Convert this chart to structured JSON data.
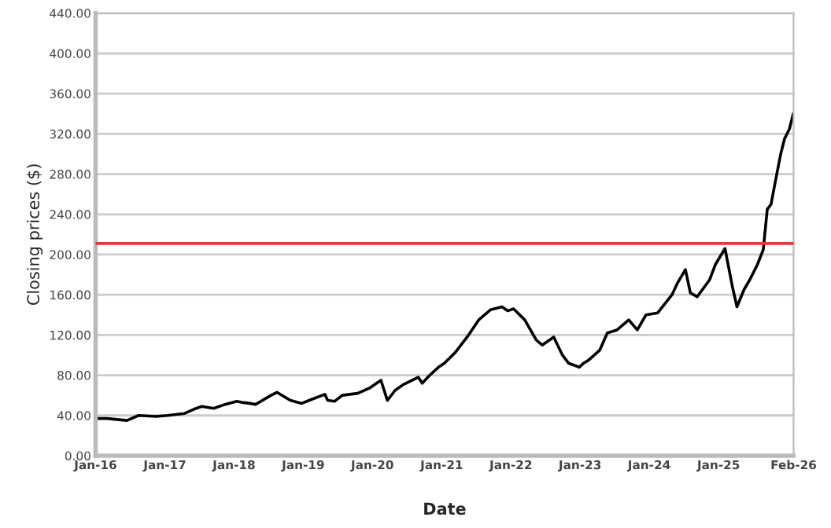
{
  "chart_data": {
    "type": "line",
    "xlabel": "Date",
    "ylabel": "Closing prices ($)",
    "x": [
      "2016-01-04",
      "2016-03-01",
      "2016-06-15",
      "2016-08-15",
      "2016-11-15",
      "2017-01-15",
      "2017-04-15",
      "2017-06-01",
      "2017-07-15",
      "2017-09-15",
      "2017-11-15",
      "2018-01-15",
      "2018-02-10",
      "2018-03-25",
      "2018-04-25",
      "2018-07-15",
      "2018-08-15",
      "2018-10-25",
      "2018-12-24",
      "2019-02-15",
      "2019-04-25",
      "2019-05-10",
      "2019-06-15",
      "2019-07-26",
      "2019-10-15",
      "2019-12-15",
      "2020-02-15",
      "2020-03-20",
      "2020-04-30",
      "2020-06-15",
      "2020-08-30",
      "2020-09-20",
      "2020-10-30",
      "2020-12-15",
      "2021-01-15",
      "2021-03-15",
      "2021-05-15",
      "2021-07-15",
      "2021-09-15",
      "2021-11-15",
      "2021-12-15",
      "2022-01-15",
      "2022-03-15",
      "2022-05-15",
      "2022-06-15",
      "2022-08-15",
      "2022-09-30",
      "2022-11-01",
      "2022-12-28",
      "2023-01-20",
      "2023-02-15",
      "2023-04-15",
      "2023-05-25",
      "2023-07-15",
      "2023-09-15",
      "2023-10-30",
      "2023-12-15",
      "2024-02-15",
      "2024-04-30",
      "2024-05-30",
      "2024-07-10",
      "2024-08-05",
      "2024-09-10",
      "2024-11-15",
      "2024-12-15",
      "2025-02-04",
      "2025-03-15",
      "2025-04-08",
      "2025-05-15",
      "2025-06-15",
      "2025-07-25",
      "2025-08-25",
      "2025-09-15",
      "2025-10-05",
      "2025-10-30",
      "2025-11-25",
      "2025-12-15",
      "2026-01-10",
      "2026-01-30"
    ],
    "series": [
      {
        "color": "#000000",
        "values": [
          37,
          37,
          35,
          40,
          39,
          40,
          42,
          46,
          49,
          47,
          51,
          54,
          53,
          52,
          51,
          60,
          63,
          55,
          52,
          56,
          61,
          55,
          54,
          60,
          62,
          67,
          75,
          55,
          65,
          71,
          78,
          72,
          80,
          88,
          92,
          103,
          118,
          135,
          145,
          148,
          144,
          146,
          135,
          115,
          110,
          118,
          100,
          92,
          88,
          92,
          95,
          105,
          122,
          125,
          135,
          125,
          140,
          142,
          160,
          172,
          185,
          162,
          158,
          175,
          190,
          206,
          168,
          148,
          165,
          175,
          190,
          205,
          245,
          250,
          275,
          300,
          315,
          325,
          340
        ]
      }
    ],
    "xlim": [
      "2016-01-01",
      "2026-02-01"
    ],
    "xticks": [
      {
        "value": "2016-01-01",
        "label": "Jan-16"
      },
      {
        "value": "2017-01-01",
        "label": "Jan-17"
      },
      {
        "value": "2018-01-01",
        "label": "Jan-18"
      },
      {
        "value": "2019-01-01",
        "label": "Jan-19"
      },
      {
        "value": "2020-01-01",
        "label": "Jan-20"
      },
      {
        "value": "2021-01-01",
        "label": "Jan-21"
      },
      {
        "value": "2022-01-01",
        "label": "Jan-22"
      },
      {
        "value": "2023-01-01",
        "label": "Jan-23"
      },
      {
        "value": "2024-01-01",
        "label": "Jan-24"
      },
      {
        "value": "2025-01-01",
        "label": "Jan-25"
      },
      {
        "value": "2026-02-01",
        "label": "Feb-26"
      }
    ],
    "ylim": [
      0,
      440
    ],
    "yticks": [
      {
        "value": 0,
        "label": "0.00"
      },
      {
        "value": 40,
        "label": "40.00"
      },
      {
        "value": 80,
        "label": "80.00"
      },
      {
        "value": 120,
        "label": "120.00"
      },
      {
        "value": 160,
        "label": "160.00"
      },
      {
        "value": 200,
        "label": "200.00"
      },
      {
        "value": 240,
        "label": "240.00"
      },
      {
        "value": 280,
        "label": "280.00"
      },
      {
        "value": 320,
        "label": "320.00"
      },
      {
        "value": 360,
        "label": "360.00"
      },
      {
        "value": 400,
        "label": "400.00"
      },
      {
        "value": 440,
        "label": "440.00"
      }
    ],
    "ref_lines": [
      {
        "axis": "y",
        "value": 211,
        "color": "#e03a3a"
      }
    ],
    "grid": "y",
    "marker": "none",
    "line_style": "solid"
  }
}
